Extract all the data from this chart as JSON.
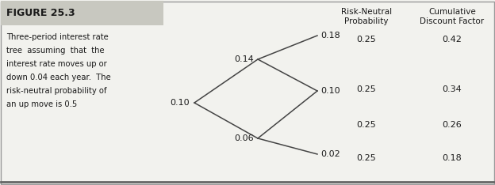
{
  "figure_title": "FIGURE 25.3",
  "description_lines": [
    "Three-period interest rate",
    "tree  assuming  that  the",
    "interest rate moves up or",
    "down 0.04 each year.  The",
    "risk-neutral probability of",
    "an up move is 0.5"
  ],
  "col_header1": "Risk-Neutral",
  "col_header1b": "Probability",
  "col_header2": "Cumulative",
  "col_header2b": "Discount Factor",
  "node_labels": {
    "t0": "0.10",
    "t1_up": "0.14",
    "t1_dn": "0.06",
    "t2_uu": "0.18",
    "t2_mid": "0.10",
    "t2_dd": "0.02"
  },
  "terminal_rows": [
    {
      "rate": "0.18",
      "prob": "0.25",
      "cdf": "0.42"
    },
    {
      "rate": "0.10",
      "prob": "0.25",
      "cdf": "0.34"
    },
    {
      "rate": "0.10",
      "prob": "0.25",
      "cdf": "0.26"
    },
    {
      "rate": "0.02",
      "prob": "0.25",
      "cdf": "0.18"
    }
  ],
  "bg_color": "#f2f2ee",
  "header_bg": "#c8c8c0",
  "border_color": "#999999",
  "text_color": "#1a1a1a",
  "line_color": "#444444"
}
